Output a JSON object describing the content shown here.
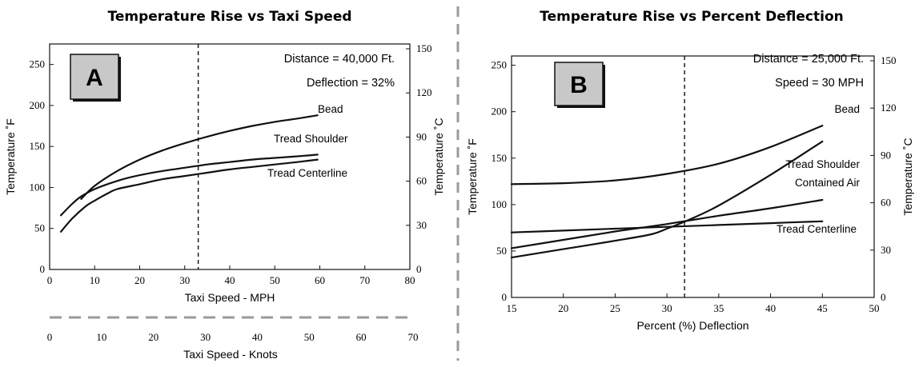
{
  "chart_data": [
    {
      "type": "line",
      "title": "Temperature Rise vs Taxi Speed",
      "panel_label": "A",
      "xlabel": "Taxi Speed - MPH",
      "ylabel": "Temperature ˚F",
      "y2label": "Temperature ˚C",
      "x2label": "Taxi Speed - Knots",
      "xlim": [
        0,
        80
      ],
      "ylim": [
        0,
        275
      ],
      "xticks": [
        0,
        10,
        20,
        30,
        40,
        50,
        60,
        70,
        80
      ],
      "yticks": [
        0,
        50,
        100,
        150,
        200,
        250
      ],
      "y2ticks": [
        0,
        30,
        60,
        90,
        120,
        150
      ],
      "x2ticks": [
        0,
        10,
        20,
        30,
        40,
        50,
        60,
        70
      ],
      "annotations": [
        "Distance = 40,000 Ft.",
        "Deflection = 32%"
      ],
      "reference_x": 33,
      "series": [
        {
          "name": "Bead",
          "x": [
            7,
            10,
            15,
            20,
            25,
            30,
            35,
            40,
            45,
            50,
            55,
            59.5
          ],
          "y": [
            86,
            102,
            120,
            134,
            145,
            154,
            162,
            169,
            175,
            180,
            184,
            188
          ]
        },
        {
          "name": "Tread Shoulder",
          "x": [
            2.5,
            5,
            7,
            10,
            15,
            20,
            25,
            30,
            35,
            40,
            45,
            50,
            55,
            59.5
          ],
          "y": [
            66,
            80,
            89,
            98,
            108,
            115,
            120,
            124,
            128,
            131,
            134,
            136,
            138,
            140
          ]
        },
        {
          "name": "Tread Centerline",
          "x": [
            2.5,
            5,
            8,
            10,
            13,
            15,
            20,
            25,
            30,
            35,
            40,
            45,
            50,
            55,
            59.5
          ],
          "y": [
            46,
            62,
            77,
            84,
            93,
            98,
            104,
            110,
            114,
            118,
            122,
            125,
            128,
            131,
            134
          ]
        }
      ]
    },
    {
      "type": "line",
      "title": "Temperature Rise vs Percent Deflection",
      "panel_label": "B",
      "xlabel": "Percent (%) Deflection",
      "ylabel": "Temperature ˚F",
      "y2label": "Temperature ˚C",
      "xlim": [
        15,
        50
      ],
      "ylim": [
        0,
        260
      ],
      "xticks": [
        15,
        20,
        25,
        30,
        35,
        40,
        45,
        50
      ],
      "yticks": [
        0,
        50,
        100,
        150,
        200,
        250
      ],
      "y2ticks": [
        0,
        30,
        60,
        90,
        120,
        150
      ],
      "annotations": [
        "Distance = 25,000 Ft.",
        "Speed = 30 MPH"
      ],
      "reference_x": 31.7,
      "series": [
        {
          "name": "Bead",
          "x": [
            15,
            20,
            25,
            30,
            35,
            40,
            45
          ],
          "y": [
            122,
            123,
            126,
            133,
            144,
            162,
            185
          ]
        },
        {
          "name": "Tread Shoulder",
          "x": [
            15,
            20,
            25,
            28.5,
            30,
            32,
            35,
            40,
            45
          ],
          "y": [
            43,
            52,
            61,
            68,
            74,
            83,
            99,
            132,
            168
          ]
        },
        {
          "name": "Contained Air",
          "x": [
            15,
            20,
            25,
            30,
            35,
            40,
            45
          ],
          "y": [
            53,
            62,
            71,
            79,
            88,
            96,
            105
          ]
        },
        {
          "name": "Tread Centerline",
          "x": [
            15,
            20,
            25,
            30,
            35,
            40,
            45
          ],
          "y": [
            70,
            72,
            74,
            76,
            78,
            80,
            82
          ]
        }
      ]
    }
  ]
}
